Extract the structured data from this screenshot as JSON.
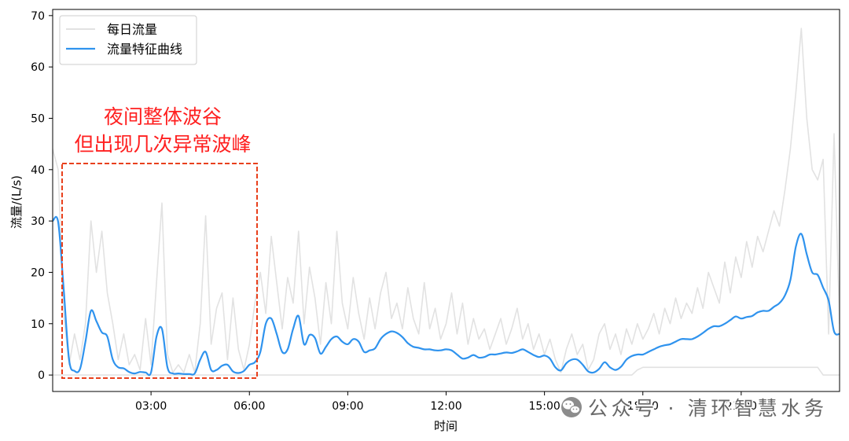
{
  "chart_data": {
    "type": "line",
    "title": "",
    "xlabel": "时间",
    "ylabel": "流量/(L/s)",
    "xlim": [
      "00:00",
      "24:00"
    ],
    "ylim": [
      -3.2,
      71.2
    ],
    "x_ticks": [
      "03:00",
      "06:00",
      "09:00",
      "12:00",
      "15:00",
      "18:00",
      "21:00"
    ],
    "y_ticks": [
      0,
      10,
      20,
      30,
      40,
      50,
      60,
      70
    ],
    "grid": false,
    "legend_position": "upper left",
    "x": [
      "00:00",
      "00:10",
      "00:20",
      "00:30",
      "00:40",
      "00:50",
      "01:00",
      "01:10",
      "01:20",
      "01:30",
      "01:40",
      "01:50",
      "02:00",
      "02:10",
      "02:20",
      "02:30",
      "02:40",
      "02:50",
      "03:00",
      "03:10",
      "03:20",
      "03:30",
      "03:40",
      "03:50",
      "04:00",
      "04:10",
      "04:20",
      "04:30",
      "04:40",
      "04:50",
      "05:00",
      "05:10",
      "05:20",
      "05:30",
      "05:40",
      "05:50",
      "06:00",
      "06:10",
      "06:20",
      "06:30",
      "06:40",
      "06:50",
      "07:00",
      "07:10",
      "07:20",
      "07:30",
      "07:40",
      "07:50",
      "08:00",
      "08:10",
      "08:20",
      "08:30",
      "08:40",
      "08:50",
      "09:00",
      "09:10",
      "09:20",
      "09:30",
      "09:40",
      "09:50",
      "10:00",
      "10:10",
      "10:20",
      "10:30",
      "10:40",
      "10:50",
      "11:00",
      "11:10",
      "11:20",
      "11:30",
      "11:40",
      "11:50",
      "12:00",
      "12:10",
      "12:20",
      "12:30",
      "12:40",
      "12:50",
      "13:00",
      "13:10",
      "13:20",
      "13:30",
      "13:40",
      "13:50",
      "14:00",
      "14:10",
      "14:20",
      "14:30",
      "14:40",
      "14:50",
      "15:00",
      "15:10",
      "15:20",
      "15:30",
      "15:40",
      "15:50",
      "16:00",
      "16:10",
      "16:20",
      "16:30",
      "16:40",
      "16:50",
      "17:00",
      "17:10",
      "17:20",
      "17:30",
      "17:40",
      "17:50",
      "18:00",
      "18:10",
      "18:20",
      "18:30",
      "18:40",
      "18:50",
      "19:00",
      "19:10",
      "19:20",
      "19:30",
      "19:40",
      "19:50",
      "20:00",
      "20:10",
      "20:20",
      "20:30",
      "20:40",
      "20:50",
      "21:00",
      "21:10",
      "21:20",
      "21:30",
      "21:40",
      "21:50",
      "22:00",
      "22:10",
      "22:20",
      "22:30",
      "22:40",
      "22:50",
      "23:00",
      "23:10",
      "23:20",
      "23:30",
      "23:40",
      "23:50",
      "24:00"
    ],
    "series": [
      {
        "name": "每日流量",
        "color": "#e2e2e2",
        "values": [
          44,
          40,
          12,
          2,
          8,
          3,
          10,
          30,
          20,
          28,
          16,
          10,
          3,
          8,
          2,
          4,
          1,
          11,
          2,
          18,
          33.5,
          4,
          0.5,
          2,
          0.5,
          4,
          0.5,
          10,
          31,
          6,
          13,
          16,
          3,
          15,
          5,
          1,
          6,
          14,
          20,
          12,
          27,
          18,
          9,
          19,
          14,
          28,
          10,
          21,
          15,
          6,
          18,
          10,
          28,
          14,
          9,
          19,
          12,
          7,
          15,
          9,
          16,
          20,
          11,
          14,
          9,
          17,
          11,
          8,
          18,
          9,
          13,
          7,
          10,
          16,
          8,
          14,
          6,
          11,
          7,
          9,
          5,
          8,
          11,
          6,
          9,
          13,
          7,
          10,
          5,
          8,
          4,
          7,
          3,
          0.5,
          5,
          8,
          4,
          6,
          1,
          3,
          8,
          10,
          5,
          8,
          4,
          9,
          6,
          10,
          7,
          9,
          12,
          8,
          13,
          10,
          15,
          11,
          14,
          12,
          17,
          13,
          20,
          17,
          14,
          22,
          16,
          23,
          19,
          26,
          21,
          27,
          24,
          28,
          32,
          29,
          36,
          44,
          55,
          67.5,
          50,
          40,
          38,
          42,
          8,
          47,
          10
        ]
      },
      {
        "color": "#e2e2e2",
        "values": [
          0,
          0,
          0,
          0,
          0,
          0,
          0,
          0,
          0,
          0,
          0,
          0,
          0,
          0,
          0,
          0,
          0,
          0,
          0,
          0,
          0,
          0,
          0,
          0,
          0,
          0,
          0,
          0,
          0,
          0,
          0,
          0,
          0,
          0,
          0,
          0,
          0,
          0,
          0,
          0,
          0,
          0,
          0,
          0,
          0,
          0,
          0,
          0,
          0,
          0,
          0,
          0,
          0,
          0,
          0,
          0,
          0,
          0,
          0,
          0,
          0,
          0,
          0,
          0,
          0,
          0,
          0,
          0,
          0,
          0,
          0,
          0,
          0,
          0,
          0,
          0,
          0,
          0,
          0,
          0,
          0,
          0,
          0,
          0,
          0,
          0,
          0,
          0,
          0,
          0,
          0,
          0,
          0,
          0,
          0,
          0,
          0,
          0,
          0,
          0,
          0,
          0,
          0,
          0,
          0,
          0,
          0,
          1,
          1.5,
          1.5,
          1.5,
          1.5,
          1.5,
          1.5,
          1.5,
          1.5,
          1.5,
          1.5,
          1.5,
          1.5,
          1.5,
          1.5,
          1.5,
          1.5,
          1.5,
          1.5,
          1.5,
          1.5,
          1.5,
          1.5,
          1.5,
          1.5,
          1.5,
          1.5,
          1.5,
          1.5,
          1.5,
          1.5,
          1.5,
          1.5,
          1.5,
          0,
          0,
          0,
          0
        ]
      },
      {
        "name": "流量特征曲线",
        "color": "#2f93ee",
        "values": [
          30,
          29.8,
          17,
          3,
          0.8,
          1.2,
          6.5,
          12.5,
          10.5,
          8.3,
          7.5,
          3,
          1.5,
          1.3,
          0.6,
          0.3,
          0.6,
          0.5,
          0.5,
          7.5,
          9,
          1.5,
          0.3,
          0.3,
          0.2,
          0.2,
          0.3,
          3,
          4.5,
          1,
          1,
          1.8,
          2,
          0.7,
          0.4,
          0.8,
          2,
          2.5,
          4.5,
          10,
          11,
          8,
          4.5,
          5,
          9,
          11.5,
          6,
          7.8,
          7.2,
          4.2,
          5.5,
          7,
          7.5,
          6.5,
          6,
          7,
          6.5,
          4.5,
          4.8,
          5.2,
          7,
          8,
          8.5,
          8.2,
          7.4,
          6.2,
          5.5,
          5.3,
          5,
          5,
          4.8,
          4.8,
          5,
          4.8,
          4,
          3.2,
          3.4,
          3.9,
          3.4,
          3.5,
          4,
          4,
          4.2,
          4.4,
          4.3,
          4.6,
          5,
          4.5,
          3.9,
          3.5,
          3.8,
          3.2,
          1.5,
          0.9,
          2.3,
          3,
          3,
          2,
          0.7,
          0.5,
          1.2,
          2.5,
          1.5,
          1,
          1.6,
          3,
          3.7,
          4,
          4,
          4.5,
          5,
          5.5,
          5.8,
          6,
          6.5,
          7,
          7,
          7,
          7.5,
          8.2,
          9,
          9.5,
          9.5,
          10,
          10.7,
          11.4,
          11,
          11.3,
          11.5,
          12.2,
          12.5,
          12.5,
          13.3,
          14,
          15.5,
          18.5,
          25,
          27.5,
          23.5,
          20,
          19.5,
          17,
          14.5,
          8.5,
          8
        ]
      }
    ],
    "annotations": [
      {
        "lines": [
          "夜间整体波谷",
          "但出现几次异常波峰"
        ],
        "text_color": "#ff2020",
        "box_style": "dashed",
        "box_color": "#e8401c"
      }
    ]
  },
  "watermark": {
    "icon": "wechat-icon",
    "text": "公众号 · 清环智慧水务"
  }
}
